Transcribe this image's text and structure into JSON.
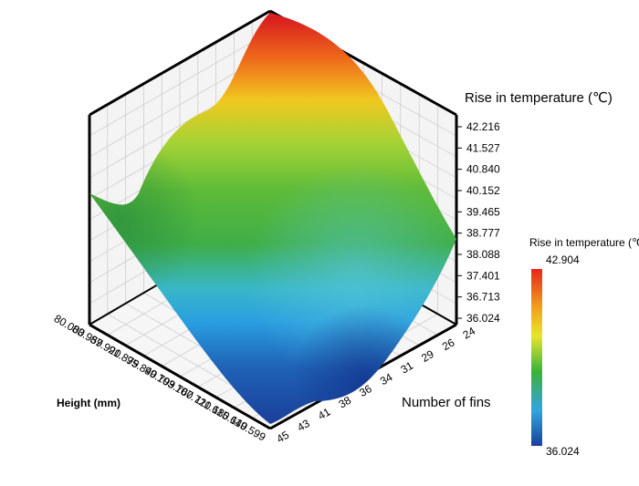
{
  "chart_data": {
    "type": "surface3d",
    "z_axis": {
      "label": "Rise in temperature (℃)",
      "ticks": [
        "42.216",
        "41.527",
        "40.840",
        "40.152",
        "39.465",
        "38.777",
        "38.088",
        "37.401",
        "36.713",
        "36.024"
      ],
      "range": [
        36.024,
        42.904
      ]
    },
    "height_axis": {
      "label": "Height (mm)",
      "ticks": [
        "80.000",
        "83.959",
        "87.920",
        "91.879",
        "95.840",
        "99.799",
        "103.760",
        "107.720",
        "111.680",
        "115.640",
        "119.599"
      ],
      "range": [
        80.0,
        119.599
      ]
    },
    "fins_axis": {
      "label": "Number of fins",
      "ticks": [
        "24",
        "26",
        "29",
        "31",
        "34",
        "36",
        "38",
        "41",
        "43",
        "45"
      ],
      "range": [
        24,
        45
      ]
    },
    "corner_values": [
      {
        "height": 80.0,
        "fins": 24,
        "rise": 42.9
      },
      {
        "height": 80.0,
        "fins": 45,
        "rise": 38.9
      },
      {
        "height": 119.599,
        "fins": 24,
        "rise": 38.7
      },
      {
        "height": 119.599,
        "fins": 45,
        "rise": 36.9
      }
    ],
    "colorbar": {
      "label": "Rise in temperature (℃)",
      "max_label": "42.904",
      "min_label": "36.024",
      "colors": [
        "#e8261a",
        "#f2a21b",
        "#e6e62a",
        "#3bb23b",
        "#2fa6e0",
        "#1a3f9a"
      ]
    },
    "grid": true
  }
}
